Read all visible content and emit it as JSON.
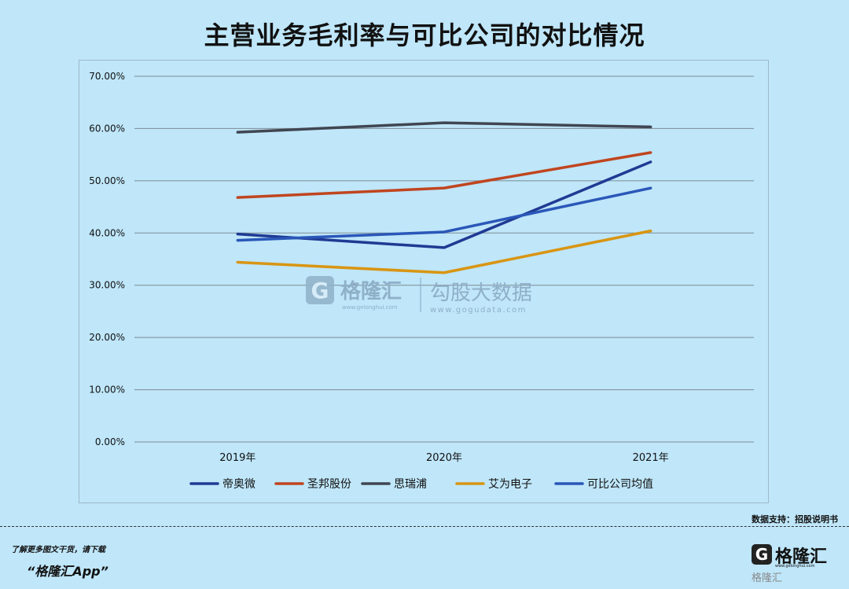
{
  "title": "主营业务毛利率与可比公司的对比情况",
  "chart_data": {
    "type": "line",
    "categories": [
      "2019年",
      "2020年",
      "2021年"
    ],
    "ylim": [
      0,
      70
    ],
    "yticks": [
      "0.00%",
      "10.00%",
      "20.00%",
      "30.00%",
      "40.00%",
      "50.00%",
      "60.00%",
      "70.00%"
    ],
    "grid": true,
    "legend_position": "bottom",
    "series": [
      {
        "name": "帝奥微",
        "values": [
          39.8,
          37.2,
          53.6
        ],
        "color": "#1f3a93"
      },
      {
        "name": "圣邦股份",
        "values": [
          46.8,
          48.6,
          55.4
        ],
        "color": "#c0451f"
      },
      {
        "name": "思瑞浦",
        "values": [
          59.3,
          61.1,
          60.3
        ],
        "color": "#404652"
      },
      {
        "name": "艾为电子",
        "values": [
          34.4,
          32.4,
          40.4
        ],
        "color": "#d99512"
      },
      {
        "name": "可比公司均值",
        "values": [
          38.6,
          40.2,
          48.6
        ],
        "color": "#2a57b8"
      }
    ]
  },
  "watermark": {
    "brand": "格隆汇",
    "brand_url": "www.gelonghui.com",
    "data_brand": "勾股大数据",
    "data_url": "www.gogudata.com"
  },
  "source": "数据支持：招股说明书",
  "footer": {
    "note": "了解更多图文干货，请下载",
    "app": "“格隆汇App”"
  },
  "logo": {
    "mark": "G",
    "name": "格隆汇",
    "url": "www.gelonghui.com",
    "sub": "格隆汇"
  }
}
